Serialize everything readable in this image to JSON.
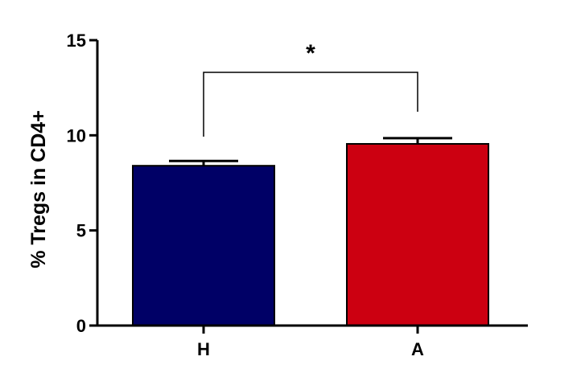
{
  "chart_data": {
    "type": "bar",
    "title": "",
    "xlabel": "",
    "ylabel": "% Tregs in CD4+",
    "ylim": [
      0,
      15
    ],
    "yticks": [
      0,
      5,
      10,
      15
    ],
    "categories": [
      "H",
      "A"
    ],
    "values": [
      8.4,
      9.55
    ],
    "errors": [
      0.25,
      0.3
    ],
    "colors": [
      "#000066",
      "#cc0011"
    ],
    "grid": false,
    "significance": {
      "between": [
        "H",
        "A"
      ],
      "label": "*"
    }
  }
}
